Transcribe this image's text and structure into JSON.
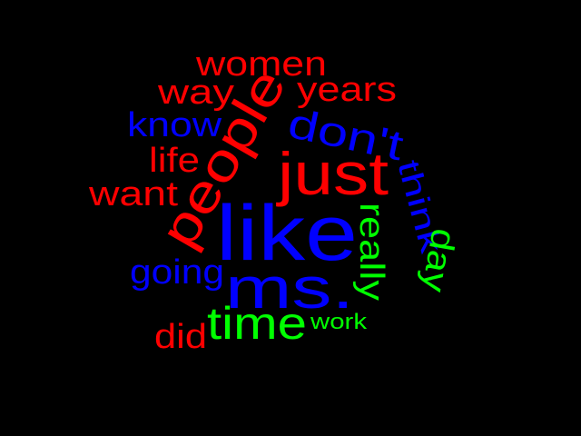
{
  "colors": {
    "background": "#000000",
    "red": "#ff0000",
    "blue": "#0000ff",
    "green": "#00ff00"
  },
  "words": [
    {
      "id": "like",
      "text": "like",
      "color": "#0000ff"
    },
    {
      "id": "people",
      "text": "people",
      "color": "#ff0000"
    },
    {
      "id": "ms",
      "text": "ms.",
      "color": "#0000ff"
    },
    {
      "id": "just",
      "text": "just",
      "color": "#ff0000"
    },
    {
      "id": "time",
      "text": "time",
      "color": "#00ff00"
    },
    {
      "id": "dont",
      "text": "don't",
      "color": "#0000ff"
    },
    {
      "id": "women",
      "text": "women",
      "color": "#ff0000"
    },
    {
      "id": "years",
      "text": "years",
      "color": "#ff0000"
    },
    {
      "id": "way",
      "text": "way",
      "color": "#ff0000"
    },
    {
      "id": "know",
      "text": "know",
      "color": "#0000ff"
    },
    {
      "id": "want",
      "text": "want",
      "color": "#ff0000"
    },
    {
      "id": "life",
      "text": "life",
      "color": "#ff0000"
    },
    {
      "id": "going",
      "text": "going",
      "color": "#0000ff"
    },
    {
      "id": "really",
      "text": "really",
      "color": "#00ff00"
    },
    {
      "id": "think",
      "text": "think",
      "color": "#0000ff"
    },
    {
      "id": "day",
      "text": "day",
      "color": "#00ff00"
    },
    {
      "id": "did",
      "text": "did",
      "color": "#ff0000"
    },
    {
      "id": "work",
      "text": "work",
      "color": "#00ff00"
    }
  ]
}
